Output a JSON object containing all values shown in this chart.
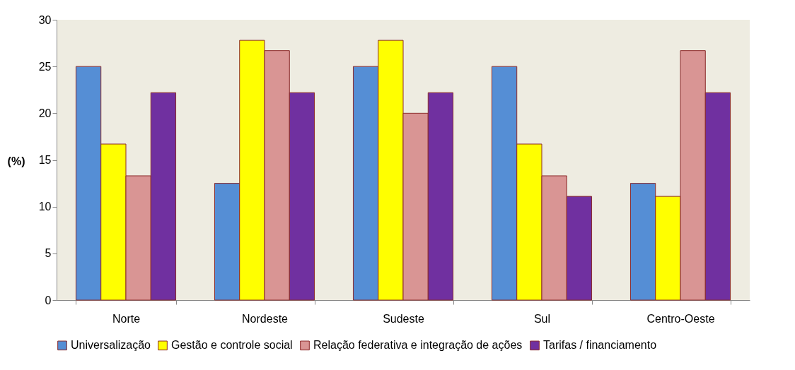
{
  "chart_data": {
    "type": "bar",
    "ylabel": "(%)",
    "categories": [
      "Norte",
      "Nordeste",
      "Sudeste",
      "Sul",
      "Centro-Oeste"
    ],
    "series": [
      {
        "name": "Universalização",
        "color": "#558ed5",
        "values": [
          25,
          12.5,
          25,
          25,
          12.5
        ]
      },
      {
        "name": "Gestão e controle social",
        "color": "#ffff00",
        "values": [
          16.7,
          27.8,
          27.8,
          16.7,
          11.1
        ]
      },
      {
        "name": "Relação federativa e integração de ações",
        "color": "#d99594",
        "values": [
          13.3,
          26.7,
          20,
          13.3,
          26.7
        ]
      },
      {
        "name": "Tarifas / financiamento",
        "color": "#7030a0",
        "values": [
          22.2,
          22.2,
          22.2,
          11.1,
          22.2
        ]
      }
    ],
    "ylim": [
      0,
      30
    ],
    "yticks": [
      0,
      5,
      10,
      15,
      20,
      25,
      30
    ],
    "grid": false,
    "legend": "bottom"
  }
}
